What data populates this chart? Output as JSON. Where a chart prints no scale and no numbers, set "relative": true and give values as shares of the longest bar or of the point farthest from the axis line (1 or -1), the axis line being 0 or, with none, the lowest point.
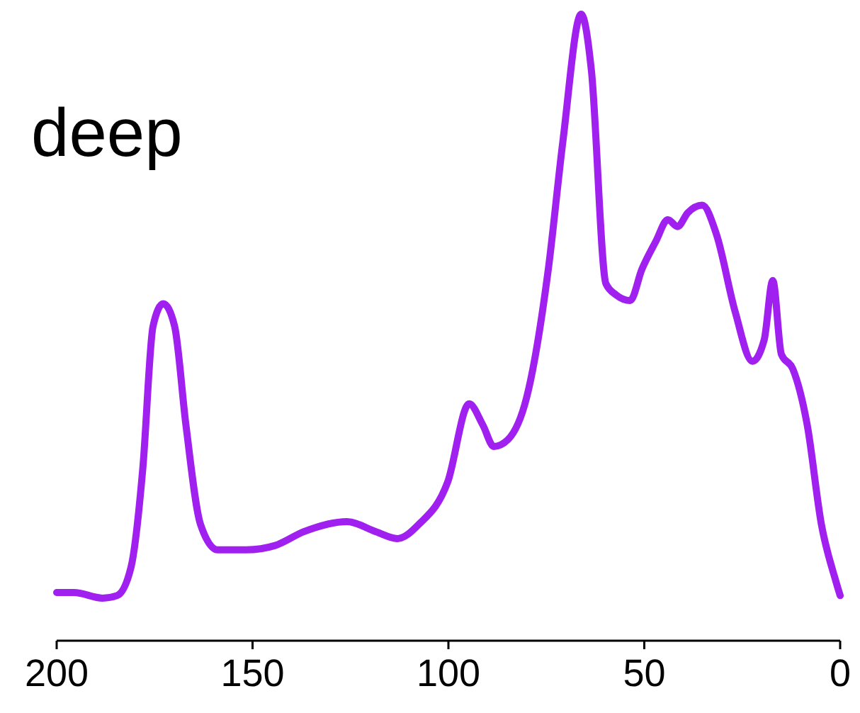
{
  "chart_data": {
    "type": "line",
    "title": "deep",
    "relative": true,
    "xlim": [
      200,
      0
    ],
    "xticks": [
      200,
      150,
      100,
      50,
      0
    ],
    "series": [
      {
        "color": "#a020f0",
        "x": [
          200,
          195.6,
          188.3,
          184.6,
          181,
          178,
          175.4,
          172.8,
          169.9,
          167,
          163.3,
          158.9,
          151.6,
          144.2,
          136.9,
          125.9,
          118.5,
          113,
          107.5,
          100.2,
          94.7,
          91.2,
          88.4,
          84.8,
          80,
          74.5,
          70.8,
          66.1,
          63.5,
          59.8,
          57.2,
          53.6,
          50.6,
          47,
          44,
          41.5,
          38.9,
          35.2,
          31.6,
          26.8,
          22.4,
          19.4,
          17.2,
          15,
          12.1,
          8.4,
          4.8,
          1.1,
          0
        ],
        "values": [
          0.077,
          0.077,
          0.068,
          0.072,
          0.118,
          0.276,
          0.502,
          0.538,
          0.502,
          0.344,
          0.186,
          0.145,
          0.145,
          0.152,
          0.174,
          0.19,
          0.174,
          0.163,
          0.186,
          0.253,
          0.378,
          0.344,
          0.31,
          0.321,
          0.389,
          0.593,
          0.796,
          1,
          0.91,
          0.57,
          0.552,
          0.543,
          0.593,
          0.638,
          0.672,
          0.661,
          0.683,
          0.695,
          0.649,
          0.525,
          0.446,
          0.48,
          0.575,
          0.457,
          0.434,
          0.344,
          0.186,
          0.095,
          0.072
        ]
      }
    ],
    "marker": "none",
    "line_style": "solid",
    "grid": false
  }
}
